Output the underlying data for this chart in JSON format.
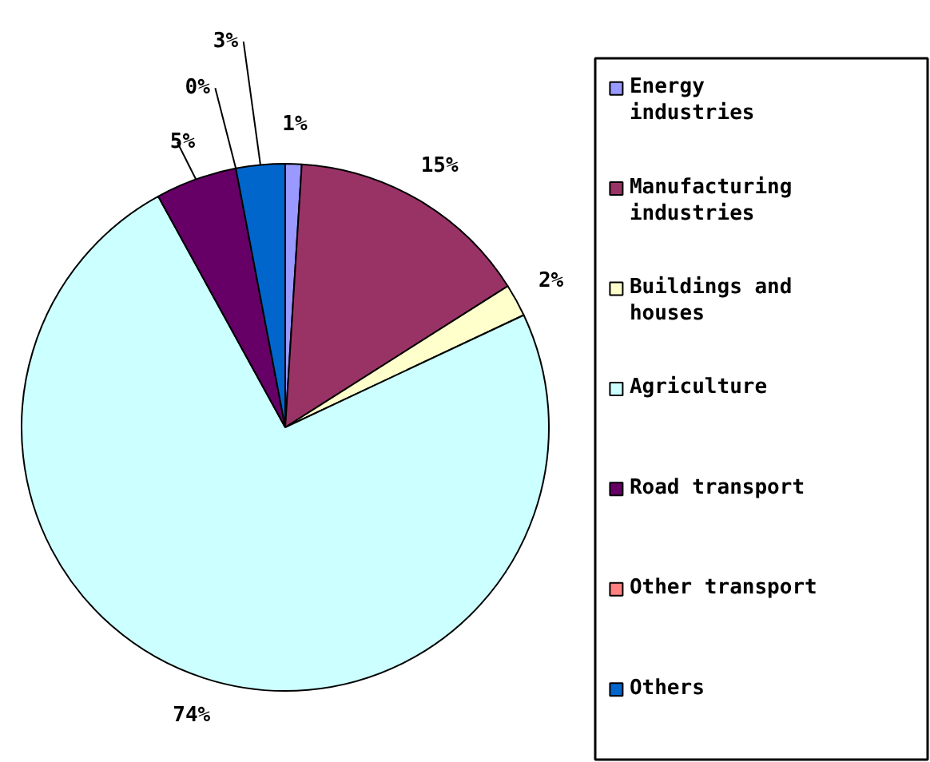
{
  "chart_data": {
    "type": "pie",
    "categories": [
      "Energy industries",
      "Manufacturing industries",
      "Buildings and houses",
      "Agriculture",
      "Road transport",
      "Other transport",
      "Others"
    ],
    "values": [
      1,
      15,
      2,
      74,
      5,
      0,
      3
    ],
    "colors": [
      "#9999ff",
      "#993366",
      "#ffffcc",
      "#ccffff",
      "#660066",
      "#ff8080",
      "#0066cc"
    ],
    "value_labels": [
      "1%",
      "15%",
      "2%",
      "74%",
      "5%",
      "0%",
      "3%"
    ],
    "legend": "right"
  }
}
